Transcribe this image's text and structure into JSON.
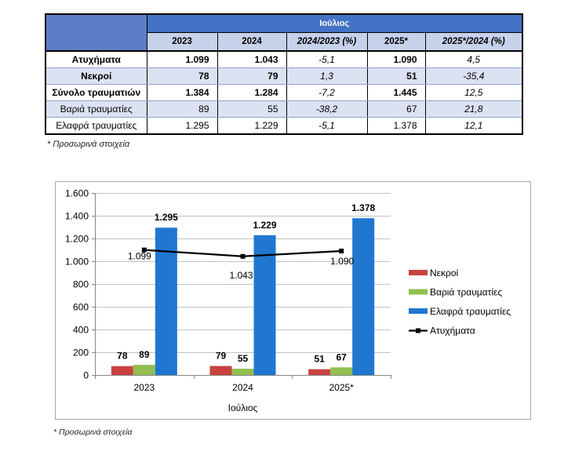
{
  "table": {
    "group_header": "Ιούλιος",
    "columns": [
      "2023",
      "2024",
      "2024/2023 (%)",
      "2025*",
      "2025*/2024 (%)"
    ],
    "rows": [
      {
        "label": "Ατυχήματα",
        "values": [
          "1.099",
          "1.043",
          "-5,1",
          "1.090",
          "4,5"
        ]
      },
      {
        "label": "Νεκροί",
        "values": [
          "78",
          "79",
          "1,3",
          "51",
          "-35,4"
        ]
      },
      {
        "label": "Σύνολο τραυματιών",
        "values": [
          "1.384",
          "1.284",
          "-7,2",
          "1.445",
          "12,5"
        ]
      },
      {
        "label": "Βαριά τραυματίες",
        "values": [
          "89",
          "55",
          "-38,2",
          "67",
          "21,8"
        ]
      },
      {
        "label": "Ελαφρά τραυματίες",
        "values": [
          "1.295",
          "1.229",
          "-5,1",
          "1.378",
          "12,1"
        ]
      }
    ],
    "footnote": "* Προσωρινά στοιχεία"
  },
  "chart_data": {
    "type": "bar",
    "categories": [
      "2023",
      "2024",
      "2025*"
    ],
    "xlabel": "Ιούλιος",
    "ylim": [
      0,
      1600
    ],
    "y_ticks": [
      0,
      200,
      400,
      600,
      800,
      1000,
      1200,
      1400,
      1600
    ],
    "y_tick_labels": [
      "0",
      "200",
      "400",
      "600",
      "800",
      "1.000",
      "1.200",
      "1.400",
      "1.600"
    ],
    "grid": true,
    "legend": "right",
    "series": [
      {
        "name": "Νεκροί",
        "type": "bar",
        "values": [
          78,
          79,
          51
        ],
        "labels": [
          "78",
          "79",
          "51"
        ],
        "color": "#c9423f"
      },
      {
        "name": "Βαριά τραυματίες",
        "type": "bar",
        "values": [
          89,
          55,
          67
        ],
        "labels": [
          "89",
          "55",
          "67"
        ],
        "color": "#92bf4f"
      },
      {
        "name": "Ελαφρά τραυματίες",
        "type": "bar",
        "values": [
          1295,
          1229,
          1378
        ],
        "labels": [
          "1.295",
          "1.229",
          "1.378"
        ],
        "color": "#1f77d0"
      },
      {
        "name": "Ατυχήματα",
        "type": "line",
        "values": [
          1099,
          1043,
          1090
        ],
        "labels": [
          "1.099",
          "1.043",
          "1.090"
        ],
        "color": "#000000"
      }
    ],
    "footnote": "* Προσωρινά στοιχεία"
  }
}
